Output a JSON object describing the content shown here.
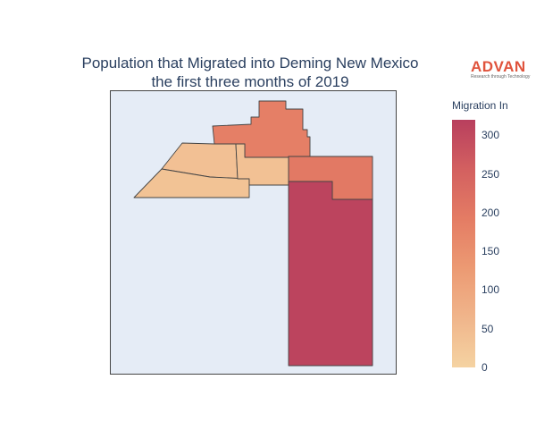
{
  "title": {
    "line1": "Population that Migrated into Deming New Mexico",
    "line2": "the first three months of 2019"
  },
  "logo": {
    "word": "ADVAN",
    "tagline": "Research through Technology"
  },
  "colorbar": {
    "title": "Migration In",
    "min": 0,
    "max": 320,
    "ticks": [
      "300",
      "250",
      "200",
      "150",
      "100",
      "50",
      "0"
    ],
    "tick_values": [
      300,
      250,
      200,
      150,
      100,
      50,
      0
    ],
    "colorscale": [
      "#f5d3a2",
      "#f0b58b",
      "#ec9a73",
      "#e47c64",
      "#d36060",
      "#b83f5e"
    ]
  },
  "map": {
    "background": "#e5ecf6",
    "border_color": "#444444",
    "regions": [
      {
        "name": "north-east-block",
        "value": 185
      },
      {
        "name": "north-middle-block",
        "value": 200
      },
      {
        "name": "east-block",
        "value": 200
      },
      {
        "name": "west-wedge",
        "value": 40
      },
      {
        "name": "center-west-block",
        "value": 35
      },
      {
        "name": "center-block",
        "value": 38
      },
      {
        "name": "south-east-block",
        "value": 310
      }
    ]
  }
}
